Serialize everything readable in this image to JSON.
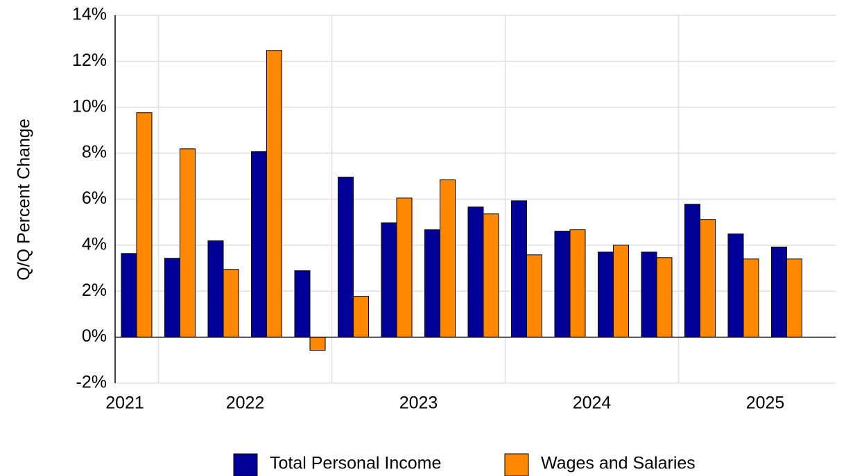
{
  "chart_data": {
    "type": "bar",
    "y_label": "Q/Q Percent Change",
    "categories": [
      "2021",
      "2022",
      null,
      null,
      null,
      "2023",
      null,
      null,
      null,
      "2024",
      null,
      null,
      null,
      "2025",
      null,
      null
    ],
    "series": [
      {
        "name": "Total Personal Income",
        "color": "#000099",
        "values": [
          3.64,
          3.43,
          4.19,
          8.07,
          2.89,
          6.96,
          4.97,
          4.67,
          5.66,
          5.93,
          4.61,
          3.7,
          3.7,
          5.78,
          4.49,
          3.92
        ]
      },
      {
        "name": "Wages and Salaries",
        "color": "#ff8800",
        "values": [
          9.76,
          8.19,
          2.95,
          12.47,
          -0.57,
          1.78,
          6.05,
          6.84,
          5.36,
          3.58,
          4.67,
          4.0,
          3.46,
          5.12,
          3.4,
          3.4
        ]
      }
    ],
    "ylim": [
      -2,
      14
    ],
    "yticks": [
      {
        "value": -2,
        "label": "-2%"
      },
      {
        "value": 0,
        "label": "0%"
      },
      {
        "value": 2,
        "label": "2%"
      },
      {
        "value": 4,
        "label": "4%"
      },
      {
        "value": 6,
        "label": "6%"
      },
      {
        "value": 8,
        "label": "8%"
      },
      {
        "value": 10,
        "label": "10%"
      },
      {
        "value": 12,
        "label": "12%"
      },
      {
        "value": 14,
        "label": "14%"
      }
    ],
    "grid": true,
    "legend": "bottom"
  }
}
